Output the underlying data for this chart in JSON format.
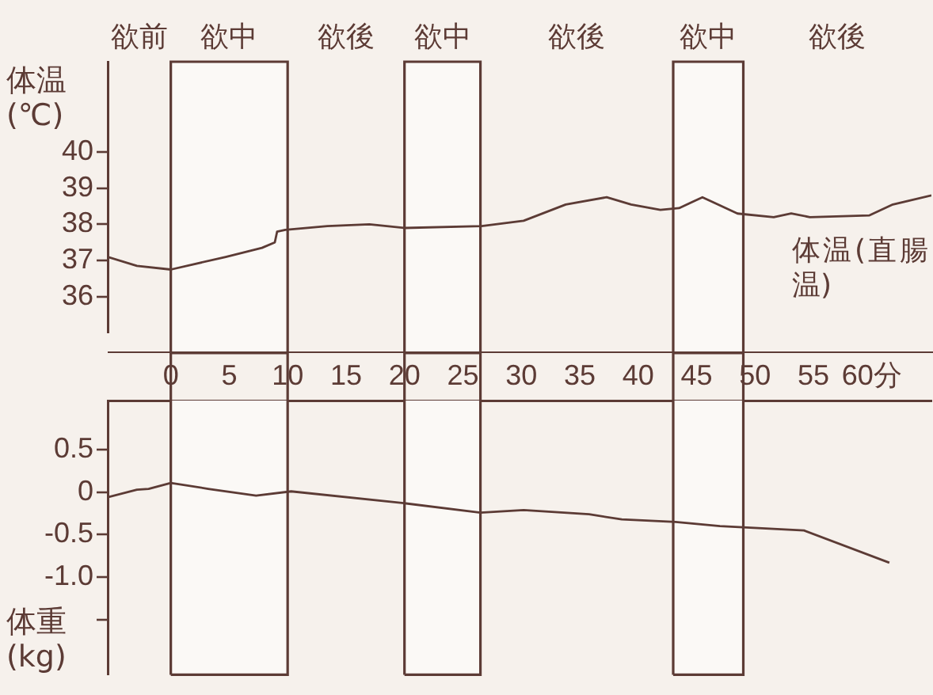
{
  "chart_data": [
    {
      "type": "line",
      "ylabel": "体温(℃)",
      "xlim": [
        -5.4,
        65.1
      ],
      "ylim": [
        35,
        42.5
      ],
      "yticks": [
        36,
        37,
        38,
        39,
        40
      ],
      "tick_labels": "y",
      "grid": false,
      "legend": false,
      "series": [
        {
          "name": "体温(直腸温)",
          "color": "#5c3b35",
          "x": [
            -5.4,
            -2.9,
            0,
            4.7,
            7.8,
            8.9,
            9.1,
            9.8,
            13.4,
            17,
            20,
            26.6,
            30.2,
            33.8,
            37.3,
            39.4,
            41.9,
            43.5,
            45.5,
            48.5,
            51.6,
            53.1,
            54.7,
            59.8,
            61.8,
            65.1
          ],
          "values": [
            37.1,
            36.85,
            36.75,
            37.1,
            37.35,
            37.5,
            37.8,
            37.85,
            37.95,
            38,
            37.9,
            37.95,
            38.1,
            38.55,
            38.75,
            38.55,
            38.4,
            38.45,
            38.75,
            38.3,
            38.2,
            38.3,
            38.2,
            38.25,
            38.55,
            38.8
          ]
        }
      ],
      "annotations": [
        "欲前",
        "欲後",
        "欲後",
        "欲後"
      ],
      "bands": [
        {
          "axis": "x",
          "from": 0,
          "to": 10,
          "label": "欲中",
          "color": "#fbf9f6"
        },
        {
          "axis": "x",
          "from": 20,
          "to": 26.5,
          "label": "欲中",
          "color": "#fbf9f6"
        },
        {
          "axis": "x",
          "from": 43,
          "to": 49,
          "label": "欲中",
          "color": "#fbf9f6"
        }
      ]
    },
    {
      "type": "line",
      "ylabel": "体重(kg)",
      "xlim": [
        -5.4,
        65.1
      ],
      "xticks": [
        0,
        5,
        10,
        15,
        20,
        25,
        30,
        35,
        40,
        45,
        50,
        55,
        {
          "value": 60,
          "label": "60分"
        }
      ],
      "ylim": [
        -2.15,
        1.08
      ],
      "yticks": [
        0.5,
        0,
        -0.5,
        {
          "value": -1,
          "label": "-1.0"
        },
        {
          "value": -1.5,
          "label": null
        }
      ],
      "grid": false,
      "legend": false,
      "series": [
        {
          "color": "#5c3b35",
          "x": [
            -5.4,
            -2.9,
            -1.9,
            0,
            3.2,
            7.3,
            10.3,
            20,
            26.5,
            30.2,
            35.8,
            38.6,
            43.2,
            47,
            54.2,
            61.5
          ],
          "values": [
            -0.06,
            0.03,
            0.04,
            0.11,
            0.04,
            -0.04,
            0.01,
            -0.13,
            -0.24,
            -0.21,
            -0.26,
            -0.32,
            -0.35,
            -0.4,
            -0.45,
            -0.83
          ]
        }
      ],
      "bands": [
        {
          "axis": "x",
          "from": 0,
          "to": 10,
          "color": "#fbf9f6"
        },
        {
          "axis": "x",
          "from": 20,
          "to": 26.5,
          "color": "#fbf9f6"
        },
        {
          "axis": "x",
          "from": 43,
          "to": 49,
          "color": "#fbf9f6"
        }
      ]
    }
  ]
}
